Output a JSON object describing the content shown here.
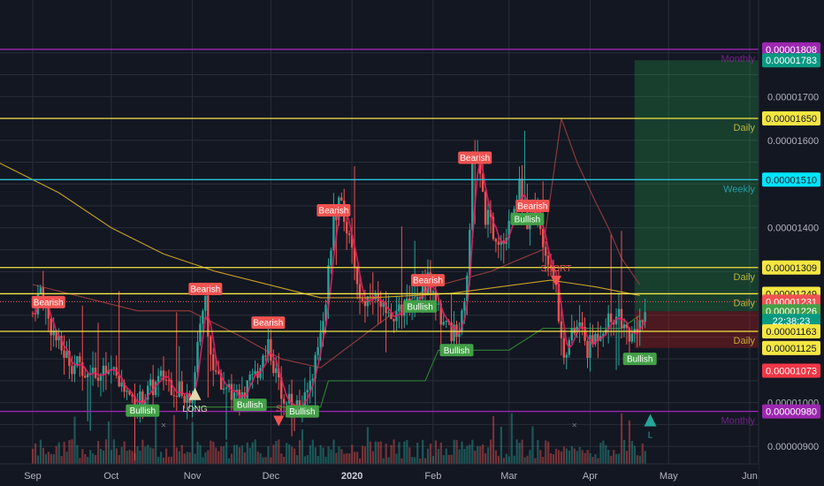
{
  "chart_data": {
    "type": "candlestick",
    "price_axis": {
      "min": 8.7e-06,
      "max": 1.84e-05,
      "ticks": [
        "0.00000900",
        "0.00001000",
        "0.00001400",
        "0.00001600",
        "0.00001700"
      ]
    },
    "time_axis": {
      "labels": [
        {
          "text": "Sep",
          "day": 0,
          "bold": false
        },
        {
          "text": "Oct",
          "day": 30,
          "bold": false
        },
        {
          "text": "Nov",
          "day": 61,
          "bold": false
        },
        {
          "text": "Dec",
          "day": 91,
          "bold": false
        },
        {
          "text": "2020",
          "day": 122,
          "bold": true
        },
        {
          "text": "Feb",
          "day": 153,
          "bold": false
        },
        {
          "text": "Mar",
          "day": 182,
          "bold": false
        },
        {
          "text": "Apr",
          "day": 213,
          "bold": false
        },
        {
          "text": "May",
          "day": 243,
          "bold": false
        },
        {
          "text": "Jun",
          "day": 274,
          "bold": false
        }
      ],
      "last_day": 232
    },
    "levels": [
      {
        "price": 1.808e-05,
        "label": "Monthly",
        "color": "#9c27b0"
      },
      {
        "price": 1.65e-05,
        "label": "Daily",
        "color": "#f5e642"
      },
      {
        "price": 1.51e-05,
        "label": "Weekly",
        "color": "#26c6da"
      },
      {
        "price": 1.309e-05,
        "label": "Daily",
        "color": "#f5e642"
      },
      {
        "price": 1.249e-05,
        "label": "Daily",
        "color": "#f5e642"
      },
      {
        "price": 1.163e-05,
        "label": "Daily",
        "color": "#f5e642"
      },
      {
        "price": 9.8e-06,
        "label": "Monthly",
        "color": "#9c27b0"
      }
    ],
    "price_tags": [
      {
        "text": "0.00001808",
        "price": 1.808e-05,
        "bg": "#9c27b0",
        "fg": "#ffffff"
      },
      {
        "text": "0.00001783",
        "price": 1.783e-05,
        "bg": "#089981",
        "fg": "#ffffff"
      },
      {
        "text": "0.00001650",
        "price": 1.65e-05,
        "bg": "#f5e642",
        "fg": "#131722"
      },
      {
        "text": "0.00001510",
        "price": 1.51e-05,
        "bg": "#00e5ff",
        "fg": "#131722"
      },
      {
        "text": "0.00001309",
        "price": 1.309e-05,
        "bg": "#f5e642",
        "fg": "#131722"
      },
      {
        "text": "0.00001249",
        "price": 1.249e-05,
        "bg": "#f5e642",
        "fg": "#131722"
      },
      {
        "text": "0.00001231",
        "price": 1.231e-05,
        "bg": "#ef5350",
        "fg": "#ffffff"
      },
      {
        "text": "0.00001226",
        "price": 1.209e-05,
        "bg": "#43a047",
        "fg": "#ffffff"
      },
      {
        "text": "22:38:23",
        "price": 1.187e-05,
        "bg": "#089981",
        "fg": "#ffffff"
      },
      {
        "text": "0.00001163",
        "price": 1.163e-05,
        "bg": "#f5e642",
        "fg": "#131722"
      },
      {
        "text": "0.00001125",
        "price": 1.125e-05,
        "bg": "#f5e642",
        "fg": "#131722"
      },
      {
        "text": "0.00001073",
        "price": 1.073e-05,
        "bg": "#f23645",
        "fg": "#ffffff"
      },
      {
        "text": "0.00000980",
        "price": 9.8e-06,
        "bg": "#9c27b0",
        "fg": "#ffffff"
      }
    ],
    "position": {
      "start_day": 230,
      "entry": 1.209e-05,
      "target": 1.783e-05,
      "stop": 1.125e-05
    },
    "badges": [
      {
        "text": "Bearish",
        "day": 6,
        "price": 1.23e-05,
        "color": "#ef5350"
      },
      {
        "text": "Bearish",
        "day": 66,
        "price": 1.26e-05,
        "color": "#ef5350"
      },
      {
        "text": "Bearish",
        "day": 90,
        "price": 1.183e-05,
        "color": "#ef5350"
      },
      {
        "text": "Bearish",
        "day": 115,
        "price": 1.44e-05,
        "color": "#ef5350"
      },
      {
        "text": "Bearish",
        "day": 151,
        "price": 1.28e-05,
        "color": "#ef5350"
      },
      {
        "text": "Bearish",
        "day": 169,
        "price": 1.56e-05,
        "color": "#ef5350"
      },
      {
        "text": "Bearish",
        "day": 191,
        "price": 1.45e-05,
        "color": "#ef5350"
      },
      {
        "text": "Bullish",
        "day": 42,
        "price": 9.82e-06,
        "color": "#43a047"
      },
      {
        "text": "Bullish",
        "day": 83,
        "price": 9.95e-06,
        "color": "#43a047"
      },
      {
        "text": "Bullish",
        "day": 103,
        "price": 9.8e-06,
        "color": "#43a047"
      },
      {
        "text": "Bullish",
        "day": 148,
        "price": 1.22e-05,
        "color": "#43a047"
      },
      {
        "text": "Bullish",
        "day": 162,
        "price": 1.12e-05,
        "color": "#43a047"
      },
      {
        "text": "Bullish",
        "day": 189,
        "price": 1.42e-05,
        "color": "#43a047"
      },
      {
        "text": "Bullish",
        "day": 232,
        "price": 1.1e-05,
        "color": "#43a047"
      }
    ],
    "markers": [
      {
        "text": "LONG",
        "shape": "up",
        "day": 62,
        "price": 1.02e-05,
        "color": "#e0d7b0"
      },
      {
        "text": "S",
        "shape": "down",
        "day": 94,
        "price": 9.7e-06,
        "color": "#ef5350"
      },
      {
        "text": "SHORT",
        "shape": "down",
        "day": 200,
        "price": 1.29e-05,
        "color": "#ef5350"
      },
      {
        "text": "L",
        "shape": "up",
        "day": 236,
        "price": 9.6e-06,
        "color": "#26a69a"
      },
      {
        "text": "×",
        "shape": "cross",
        "day": 50,
        "price": 9.5e-06,
        "color": "#787b86"
      },
      {
        "text": "×",
        "shape": "cross",
        "day": 207,
        "price": 9.5e-06,
        "color": "#787b86"
      }
    ],
    "colors": {
      "up": "#26a69a",
      "down": "#ef5350",
      "ma_slow": "#c9a227",
      "ma_fast": "#e91e63",
      "trail_red": "#8b3a3a",
      "trail_green": "#2e7d32",
      "grid": "#2a2e39",
      "axis_text": "#b2b5be"
    }
  }
}
